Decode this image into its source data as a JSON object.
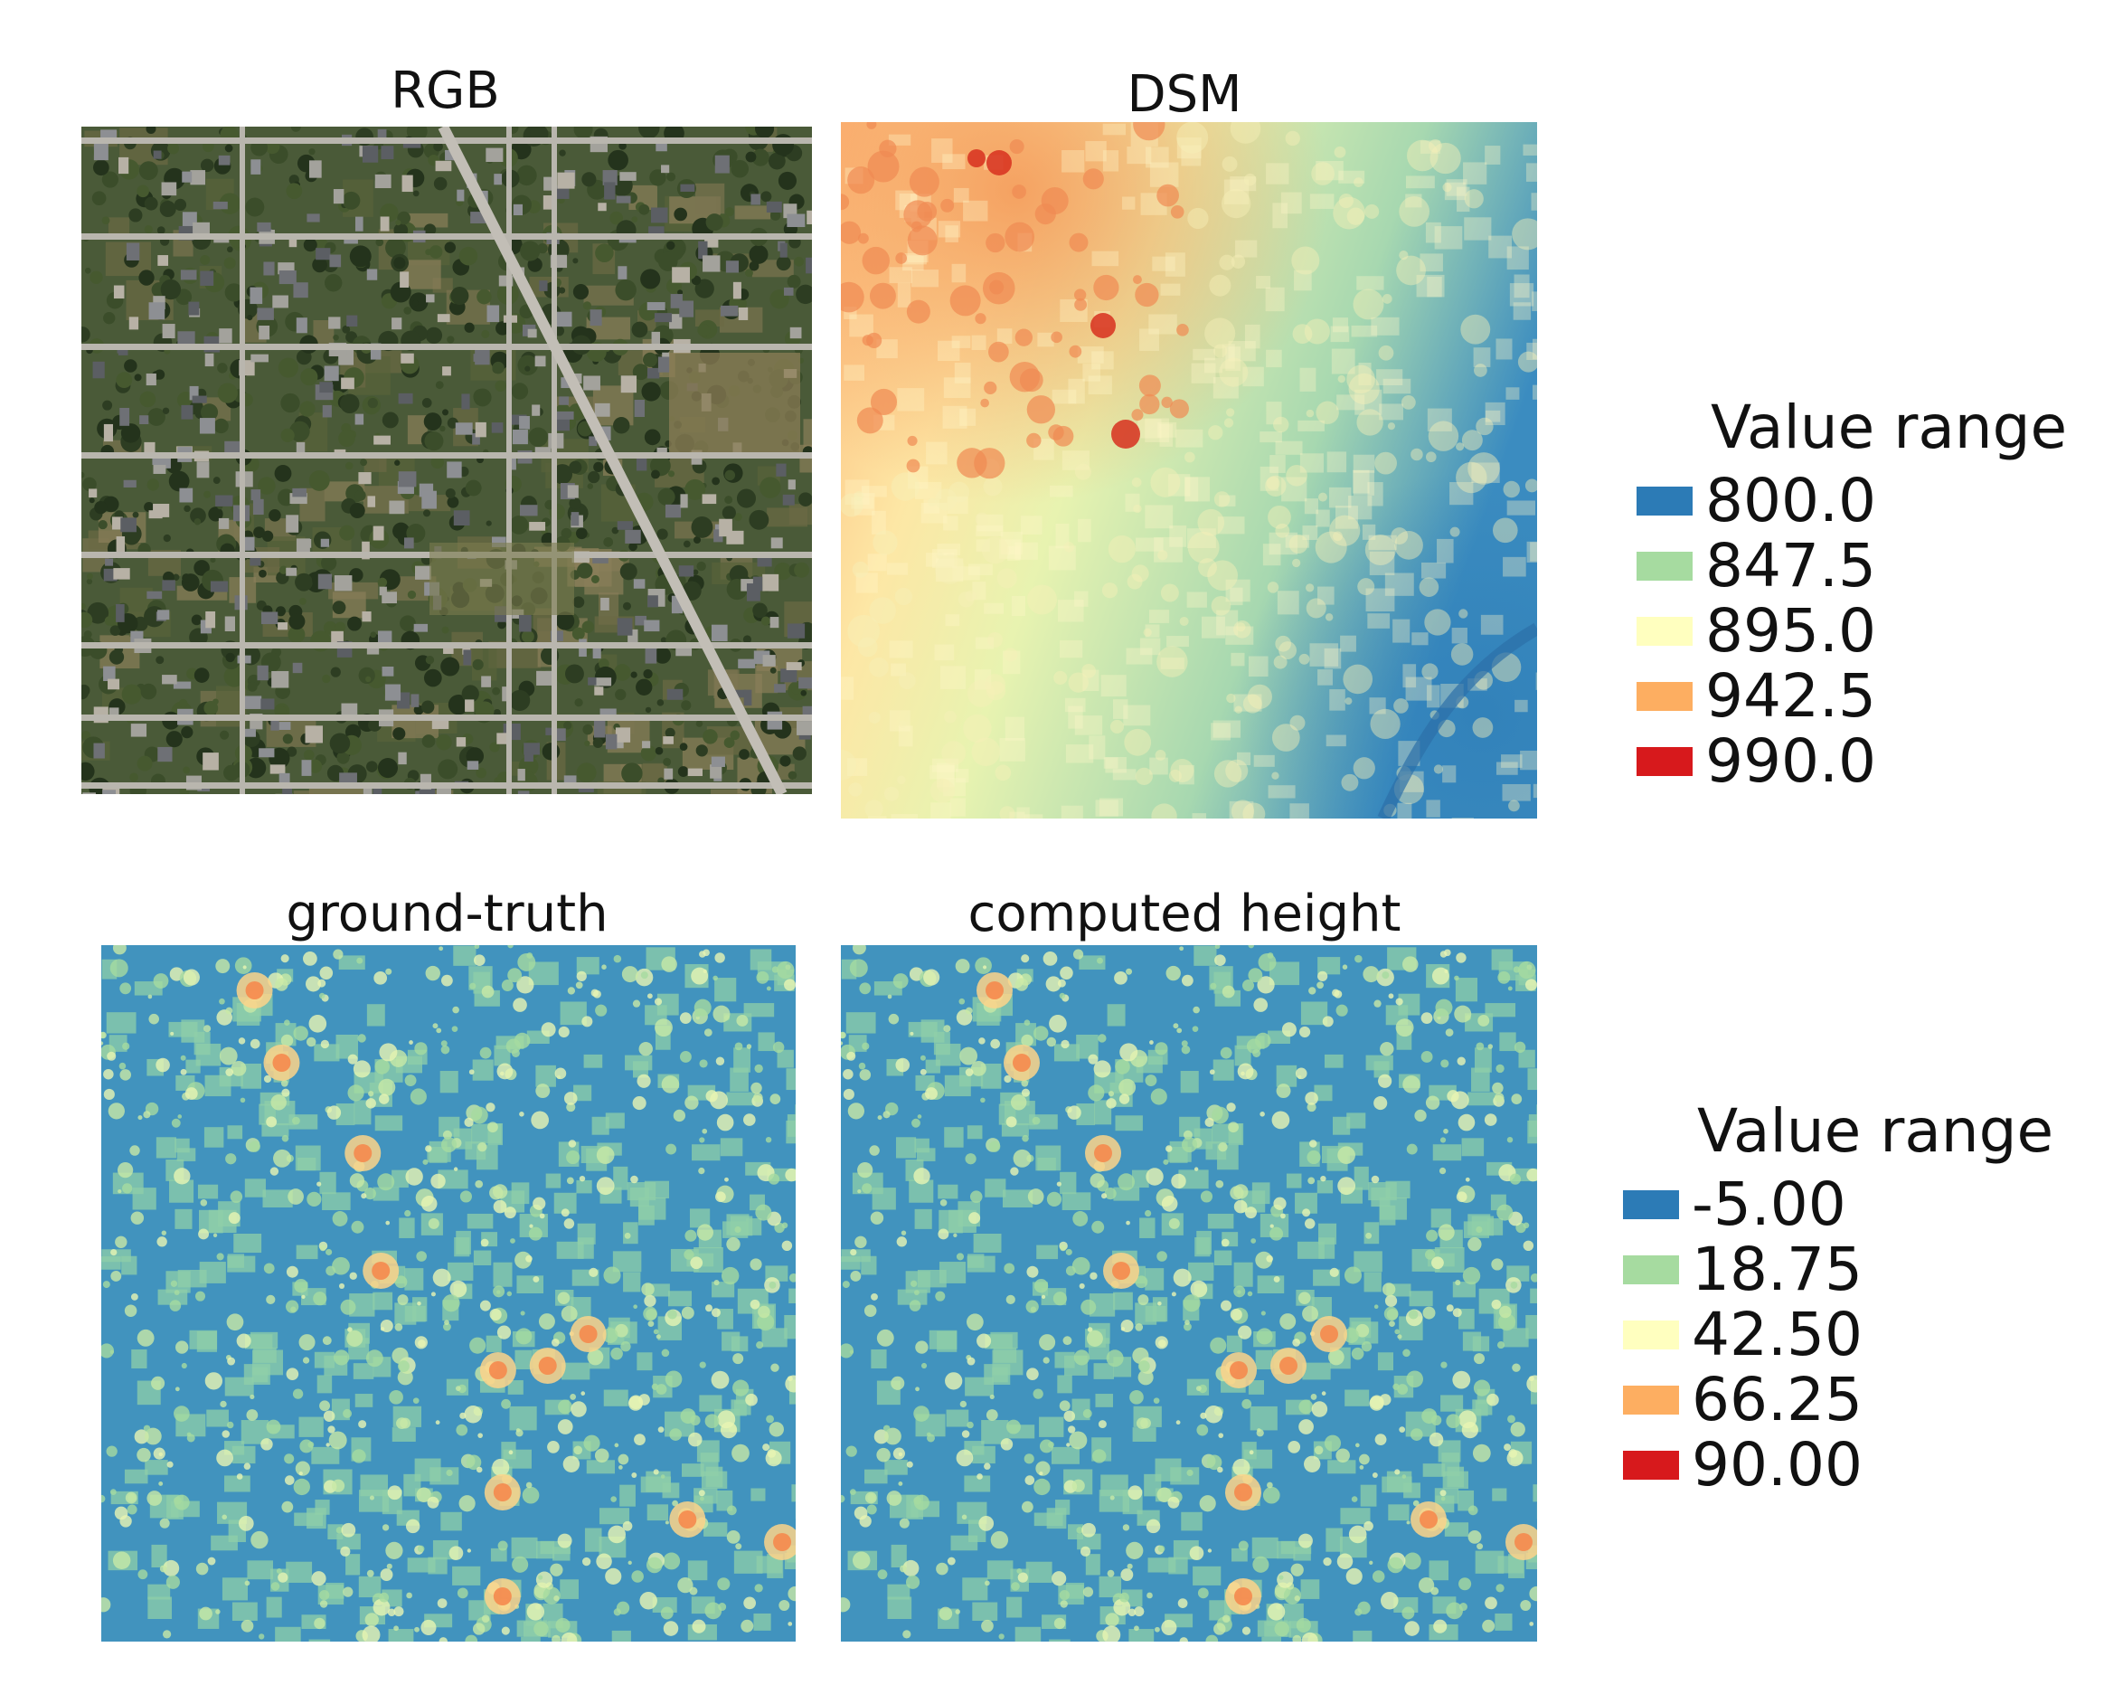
{
  "panels": {
    "rgb": {
      "title": "RGB"
    },
    "dsm": {
      "title": "DSM"
    },
    "ground_truth": {
      "title": "ground-truth"
    },
    "computed": {
      "title": "computed height"
    }
  },
  "legend_top": {
    "title": "Value range",
    "entries": [
      {
        "label": "800.0",
        "color": "#2c7bb6"
      },
      {
        "label": "847.5",
        "color": "#a6dba0"
      },
      {
        "label": "895.0",
        "color": "#ffffbf"
      },
      {
        "label": "942.5",
        "color": "#fdae61"
      },
      {
        "label": "990.0",
        "color": "#d7191c"
      }
    ]
  },
  "legend_bottom": {
    "title": "Value range",
    "entries": [
      {
        "label": "-5.00",
        "color": "#2c7bb6"
      },
      {
        "label": "18.75",
        "color": "#a6dba0"
      },
      {
        "label": "42.50",
        "color": "#ffffbf"
      },
      {
        "label": "66.25",
        "color": "#fdae61"
      },
      {
        "label": "90.00",
        "color": "#d7191c"
      }
    ]
  }
}
